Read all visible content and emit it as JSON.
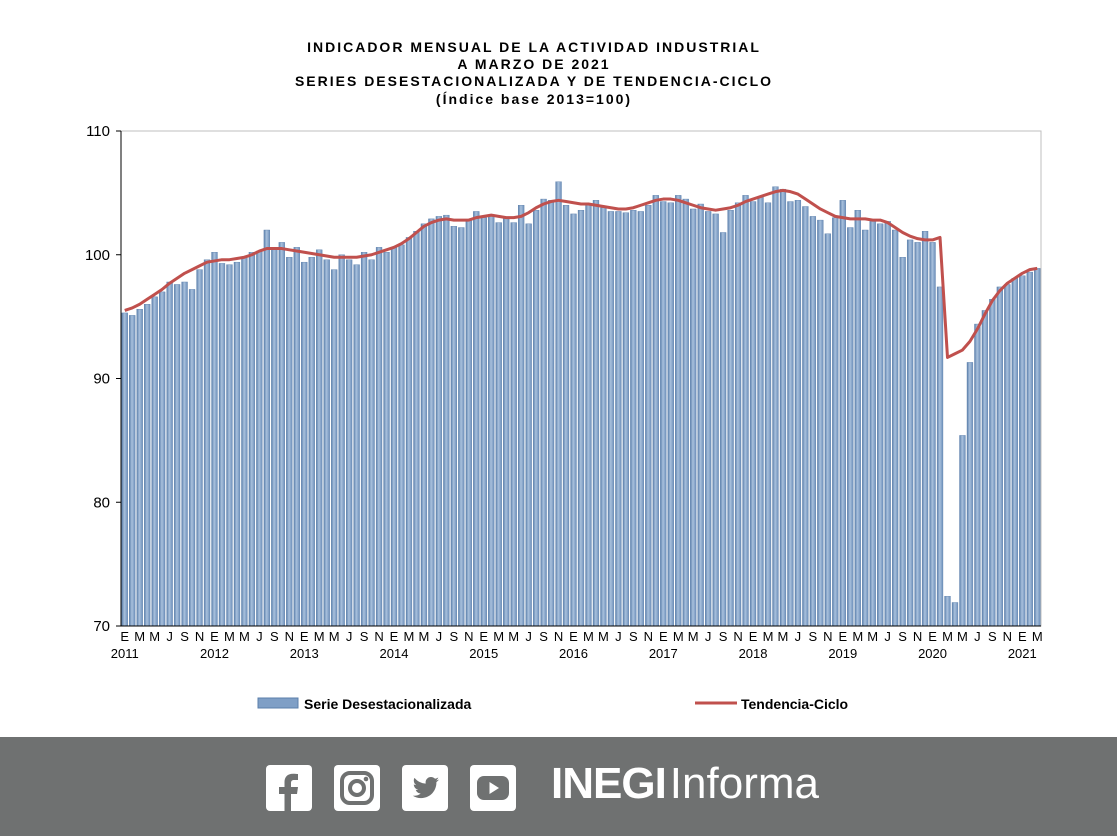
{
  "chart_data": {
    "type": "bar+line",
    "title_lines": [
      "INDICADOR MENSUAL DE LA ACTIVIDAD INDUSTRIAL",
      "A MARZO DE 2021",
      "SERIES DESESTACIONALIZADA  Y DE TENDENCIA-CICLO",
      "(Índice base 2013=100)"
    ],
    "ylim": [
      70,
      110
    ],
    "yticks": [
      "70",
      "80",
      "90",
      "100",
      "110"
    ],
    "start": "2011-01",
    "end": "2021-03",
    "x_tick_labels_per_year": [
      "E",
      "M",
      "M",
      "J",
      "S",
      "N"
    ],
    "last_year_tick_labels": [
      "E",
      "M"
    ],
    "years": [
      "2011",
      "2012",
      "2013",
      "2014",
      "2015",
      "2016",
      "2017",
      "2018",
      "2019",
      "2020",
      "2021"
    ],
    "series": [
      {
        "name": "Serie Desestacionalizada",
        "kind": "bar",
        "color": "#7f9fc6",
        "values": [
          95.3,
          95.1,
          95.6,
          96.0,
          96.6,
          97.0,
          97.8,
          97.6,
          97.8,
          97.2,
          98.8,
          99.6,
          100.2,
          99.3,
          99.2,
          99.4,
          99.8,
          100.2,
          100.3,
          102.0,
          100.4,
          101.0,
          99.8,
          100.6,
          99.4,
          99.8,
          100.4,
          99.6,
          98.8,
          100.0,
          99.6,
          99.2,
          100.2,
          99.6,
          100.6,
          100.2,
          100.6,
          100.8,
          101.4,
          101.9,
          102.5,
          102.9,
          103.1,
          103.2,
          102.3,
          102.2,
          102.8,
          103.5,
          103.0,
          103.1,
          102.6,
          103.0,
          102.6,
          104.0,
          102.5,
          103.6,
          104.5,
          104.4,
          105.9,
          104.0,
          103.3,
          103.6,
          104.1,
          104.4,
          103.8,
          103.5,
          103.5,
          103.4,
          103.6,
          103.5,
          104.0,
          104.8,
          104.3,
          104.2,
          104.8,
          104.5,
          103.7,
          104.1,
          103.5,
          103.3,
          101.8,
          103.6,
          104.2,
          104.8,
          104.3,
          104.7,
          104.2,
          105.5,
          105.3,
          104.3,
          104.4,
          103.9,
          103.1,
          102.8,
          101.7,
          103.0,
          104.4,
          102.2,
          103.6,
          102.0,
          102.7,
          102.5,
          102.7,
          102.0,
          99.8,
          101.2,
          101.0,
          101.9,
          101.0,
          97.4,
          72.4,
          71.9,
          85.4,
          91.3,
          94.4,
          95.5,
          96.4,
          97.4,
          97.6,
          98.1,
          98.3,
          98.6,
          98.9
        ]
      },
      {
        "name": "Tendencia-Ciclo",
        "kind": "line",
        "color": "#c0504d",
        "values": [
          95.5,
          95.7,
          96.0,
          96.4,
          96.8,
          97.2,
          97.7,
          98.1,
          98.5,
          98.8,
          99.1,
          99.4,
          99.5,
          99.6,
          99.6,
          99.7,
          99.8,
          100.0,
          100.3,
          100.5,
          100.5,
          100.5,
          100.4,
          100.3,
          100.2,
          100.1,
          100.0,
          99.9,
          99.8,
          99.8,
          99.8,
          99.8,
          99.9,
          100.0,
          100.2,
          100.4,
          100.6,
          100.9,
          101.3,
          101.8,
          102.3,
          102.6,
          102.8,
          102.9,
          102.8,
          102.8,
          102.8,
          103.0,
          103.1,
          103.2,
          103.1,
          103.0,
          103.0,
          103.1,
          103.4,
          103.8,
          104.1,
          104.3,
          104.4,
          104.3,
          104.2,
          104.1,
          104.1,
          104.0,
          103.9,
          103.8,
          103.7,
          103.7,
          103.8,
          104.0,
          104.2,
          104.4,
          104.5,
          104.5,
          104.4,
          104.2,
          104.0,
          103.8,
          103.7,
          103.6,
          103.7,
          103.8,
          104.0,
          104.3,
          104.5,
          104.7,
          104.9,
          105.1,
          105.2,
          105.1,
          104.9,
          104.5,
          104.1,
          103.7,
          103.4,
          103.1,
          103.0,
          102.9,
          102.9,
          102.9,
          102.8,
          102.8,
          102.6,
          102.2,
          101.8,
          101.5,
          101.3,
          101.2,
          101.2,
          101.4,
          91.7,
          92.0,
          92.3,
          93.0,
          94.0,
          95.2,
          96.3,
          97.1,
          97.7,
          98.1,
          98.5,
          98.8,
          98.9
        ]
      }
    ],
    "legend": {
      "placement": "bottom"
    }
  },
  "footer": {
    "icons": [
      "facebook-icon",
      "instagram-icon",
      "twitter-icon",
      "youtube-icon"
    ],
    "brand_bold": "INEGI",
    "brand_light": "Informa",
    "background": "#6f7171"
  }
}
